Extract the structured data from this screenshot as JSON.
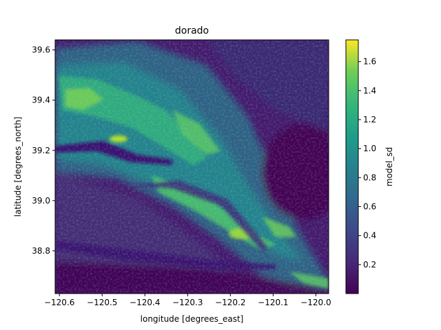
{
  "chart_data": {
    "type": "heatmap",
    "title": "dorado",
    "xlabel": "longitude [degrees_east]",
    "ylabel": "latitude [degrees_north]",
    "colorbar_label": "model_sd",
    "colormap": "viridis",
    "xlim": [
      -120.61,
      -119.97
    ],
    "ylim": [
      38.63,
      39.64
    ],
    "clim": [
      0.0,
      1.75
    ],
    "xticks": [
      -120.6,
      -120.5,
      -120.4,
      -120.3,
      -120.2,
      -120.1,
      -120.0
    ],
    "xtick_labels": [
      "−120.6",
      "−120.5",
      "−120.4",
      "−120.3",
      "−120.2",
      "−120.1",
      "−120.0"
    ],
    "yticks": [
      38.8,
      39.0,
      39.2,
      39.4,
      39.6
    ],
    "ytick_labels": [
      "38.8",
      "39.0",
      "39.2",
      "39.4",
      "39.6"
    ],
    "cticks": [
      0.2,
      0.4,
      0.6,
      0.8,
      1.0,
      1.2,
      1.4,
      1.6
    ],
    "ctick_labels": [
      "0.2",
      "0.4",
      "0.6",
      "0.8",
      "1.0",
      "1.2",
      "1.4",
      "1.6"
    ],
    "grid": false
  }
}
